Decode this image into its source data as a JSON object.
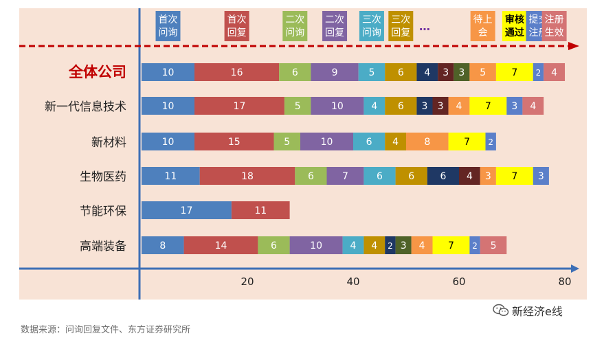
{
  "chart_data": {
    "type": "bar",
    "stacked": true,
    "orientation": "horizontal",
    "categories": [
      "全体公司",
      "新一代信息技术",
      "新材料",
      "生物医药",
      "节能环保",
      "高端装备"
    ],
    "stages": [
      {
        "label": "首次\n问询",
        "color": "#4e80bd",
        "text_color": "#ffffff"
      },
      {
        "label": "首次\n回复",
        "color": "#c0504d",
        "text_color": "#ffffff"
      },
      {
        "label": "二次\n问询",
        "color": "#9bbb59",
        "text_color": "#ffffff"
      },
      {
        "label": "二次\n回复",
        "color": "#8064a2",
        "text_color": "#ffffff"
      },
      {
        "label": "三次\n问询",
        "color": "#4bacc6",
        "text_color": "#ffffff"
      },
      {
        "label": "三次\n回复",
        "color": "#bf9000",
        "text_color": "#ffffff"
      },
      {
        "label": "…",
        "color": "#1f3864",
        "text_color": "#ffffff"
      },
      {
        "label": "",
        "color": "#632523",
        "text_color": "#ffffff"
      },
      {
        "label": "",
        "color": "#4f6228",
        "text_color": "#ffffff"
      },
      {
        "label": "待上\n会",
        "color": "#f79646",
        "text_color": "#ffffff"
      },
      {
        "label": "审核\n通过",
        "color": "#ffff00",
        "text_color": "#000000"
      },
      {
        "label": "提交\n注册",
        "color": "#5b7fc9",
        "text_color": "#ffffff"
      },
      {
        "label": "注册\n生效",
        "color": "#d47474",
        "text_color": "#ffffff"
      }
    ],
    "series": [
      {
        "values": [
          10,
          10,
          10,
          11,
          17,
          8
        ]
      },
      {
        "values": [
          16,
          17,
          15,
          18,
          11,
          14
        ]
      },
      {
        "values": [
          6,
          5,
          5,
          6,
          null,
          6
        ]
      },
      {
        "values": [
          9,
          10,
          10,
          7,
          null,
          10
        ]
      },
      {
        "values": [
          5,
          4,
          6,
          6,
          null,
          4
        ]
      },
      {
        "values": [
          6,
          6,
          4,
          6,
          null,
          4
        ]
      },
      {
        "values": [
          4,
          3,
          null,
          6,
          null,
          2
        ]
      },
      {
        "values": [
          3,
          3,
          null,
          4,
          null,
          null
        ]
      },
      {
        "values": [
          3,
          null,
          null,
          null,
          null,
          3
        ]
      },
      {
        "values": [
          5,
          4,
          8,
          3,
          null,
          4
        ]
      },
      {
        "values": [
          7,
          7,
          7,
          7,
          null,
          7
        ]
      },
      {
        "values": [
          2,
          3,
          2,
          3,
          null,
          2
        ]
      },
      {
        "values": [
          4,
          4,
          null,
          null,
          null,
          5
        ]
      }
    ],
    "xlim": [
      0,
      80
    ],
    "xticks": [
      20,
      40,
      60,
      80
    ],
    "title": "",
    "xlabel": "",
    "ylabel": "",
    "grid": false
  },
  "source_text": "数据来源：问询回复文件、东方证券研究所",
  "watermark_text": "新经济e线"
}
